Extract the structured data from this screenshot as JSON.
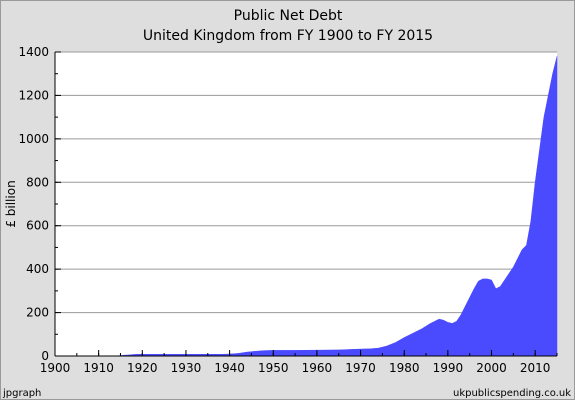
{
  "chart_data": {
    "type": "area",
    "title": "Public Net Debt",
    "subtitle": "United Kingdom from FY 1900 to FY 2015",
    "xlabel": "",
    "ylabel": "£ billion",
    "xlim": [
      1900,
      2015
    ],
    "ylim": [
      0,
      1400
    ],
    "x_ticks": [
      1900,
      1910,
      1920,
      1930,
      1940,
      1950,
      1960,
      1970,
      1980,
      1990,
      2000,
      2010
    ],
    "y_ticks": [
      0,
      200,
      400,
      600,
      800,
      1000,
      1200,
      1400
    ],
    "grid": true,
    "legend": "none",
    "series": [
      {
        "color": "#4a4aff",
        "x": [
          1900,
          1905,
          1910,
          1914,
          1915,
          1916,
          1917,
          1918,
          1919,
          1920,
          1925,
          1930,
          1935,
          1938,
          1940,
          1942,
          1944,
          1946,
          1948,
          1950,
          1955,
          1960,
          1965,
          1970,
          1972,
          1974,
          1976,
          1978,
          1980,
          1982,
          1984,
          1986,
          1987,
          1988,
          1989,
          1990,
          1991,
          1992,
          1993,
          1994,
          1995,
          1996,
          1997,
          1998,
          1999,
          2000,
          2001,
          2002,
          2003,
          2004,
          2005,
          2006,
          2007,
          2008,
          2009,
          2010,
          2011,
          2012,
          2013,
          2014,
          2015
        ],
        "values": [
          0.6,
          0.7,
          0.6,
          0.6,
          2,
          4,
          5,
          7,
          8,
          8,
          8,
          8,
          8,
          8,
          9,
          12,
          18,
          22,
          25,
          26,
          26,
          27,
          28,
          32,
          33,
          36,
          46,
          62,
          85,
          105,
          125,
          150,
          160,
          170,
          165,
          155,
          150,
          160,
          190,
          230,
          270,
          310,
          345,
          355,
          355,
          350,
          310,
          320,
          350,
          380,
          410,
          450,
          490,
          510,
          620,
          800,
          950,
          1100,
          1200,
          1300,
          1380
        ]
      }
    ]
  },
  "footer": {
    "left": "jpgraph",
    "right": "ukpublicspending.co.uk"
  }
}
